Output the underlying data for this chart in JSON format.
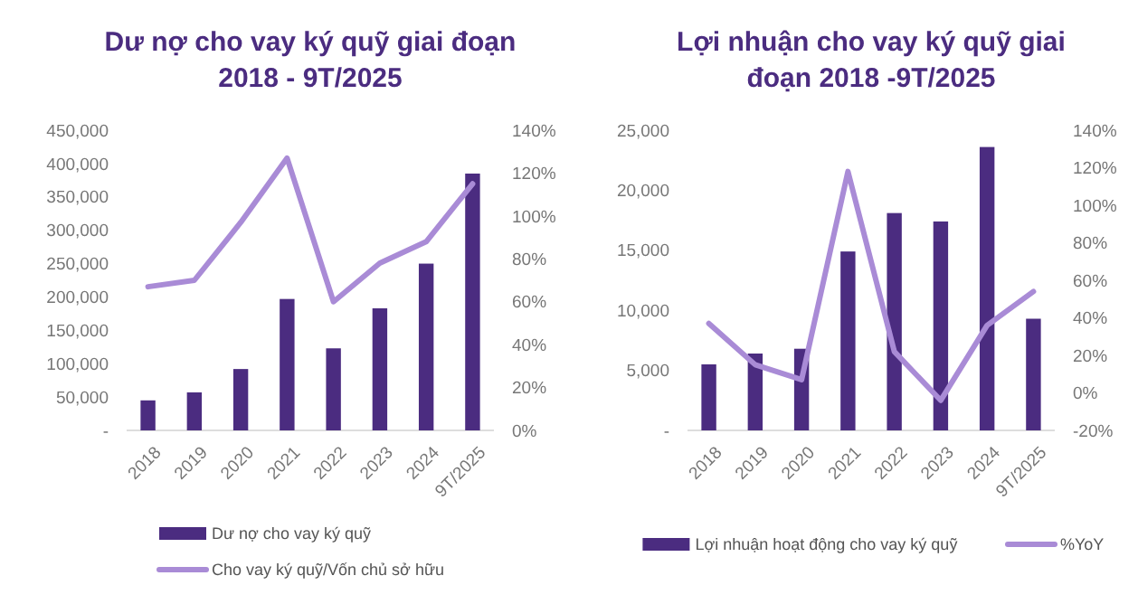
{
  "chart_data": [
    {
      "type": "bar",
      "title": "Dư nợ cho vay ký quỹ giai đoạn 2018 - 9T/2025",
      "categories": [
        "2018",
        "2019",
        "2020",
        "2021",
        "2022",
        "2023",
        "2024",
        "9T/2025"
      ],
      "series": [
        {
          "name": "Dư nợ cho vay ký quỹ",
          "type": "bar",
          "color": "#4b2c80",
          "values": [
            45000,
            57000,
            92000,
            197000,
            123000,
            183000,
            250000,
            385000
          ]
        },
        {
          "name": "Cho vay ký quỹ/Vốn chủ sở hữu",
          "type": "line",
          "axis": "y2",
          "color": "#a98bd6",
          "values": [
            67,
            70,
            97,
            127,
            60,
            78,
            88,
            115
          ]
        }
      ],
      "ylim": [
        0,
        450000
      ],
      "yticks": [
        {
          "value": 0,
          "label": "-"
        },
        {
          "value": 50000,
          "label": "50,000"
        },
        {
          "value": 100000,
          "label": "100,000"
        },
        {
          "value": 150000,
          "label": "150,000"
        },
        {
          "value": 200000,
          "label": "200,000"
        },
        {
          "value": 250000,
          "label": "250,000"
        },
        {
          "value": 300000,
          "label": "300,000"
        },
        {
          "value": 350000,
          "label": "350,000"
        },
        {
          "value": 400000,
          "label": "400,000"
        },
        {
          "value": 450000,
          "label": "450,000"
        }
      ],
      "y2lim": [
        0,
        140
      ],
      "y2ticks": [
        {
          "value": 0,
          "label": "0%"
        },
        {
          "value": 20,
          "label": "20%"
        },
        {
          "value": 40,
          "label": "40%"
        },
        {
          "value": 60,
          "label": "60%"
        },
        {
          "value": 80,
          "label": "80%"
        },
        {
          "value": 100,
          "label": "100%"
        },
        {
          "value": 120,
          "label": "120%"
        },
        {
          "value": 140,
          "label": "140%"
        }
      ],
      "legend": "bottom"
    },
    {
      "type": "bar",
      "title": "Lợi nhuận cho vay ký quỹ giai đoạn 2018 -9T/2025",
      "categories": [
        "2018",
        "2019",
        "2020",
        "2021",
        "2022",
        "2023",
        "2024",
        "9T/2025"
      ],
      "series": [
        {
          "name": "Lợi nhuận hoạt động cho vay ký quỹ",
          "type": "bar",
          "color": "#4b2c80",
          "values": [
            5500,
            6400,
            6800,
            14900,
            18100,
            17400,
            23600,
            9300
          ]
        },
        {
          "name": "%YoY",
          "type": "line",
          "axis": "y2",
          "color": "#a98bd6",
          "values": [
            37,
            15,
            7,
            118,
            22,
            -4,
            36,
            54
          ]
        }
      ],
      "ylim": [
        0,
        25000
      ],
      "yticks": [
        {
          "value": 0,
          "label": "-"
        },
        {
          "value": 5000,
          "label": "5,000"
        },
        {
          "value": 10000,
          "label": "10,000"
        },
        {
          "value": 15000,
          "label": "15,000"
        },
        {
          "value": 20000,
          "label": "20,000"
        },
        {
          "value": 25000,
          "label": "25,000"
        }
      ],
      "y2lim": [
        -20,
        140
      ],
      "y2ticks": [
        {
          "value": -20,
          "label": "-20%"
        },
        {
          "value": 0,
          "label": "0%"
        },
        {
          "value": 20,
          "label": "20%"
        },
        {
          "value": 40,
          "label": "40%"
        },
        {
          "value": 60,
          "label": "60%"
        },
        {
          "value": 80,
          "label": "80%"
        },
        {
          "value": 100,
          "label": "100%"
        },
        {
          "value": 120,
          "label": "120%"
        },
        {
          "value": 140,
          "label": "140%"
        }
      ],
      "legend": "bottom"
    }
  ]
}
